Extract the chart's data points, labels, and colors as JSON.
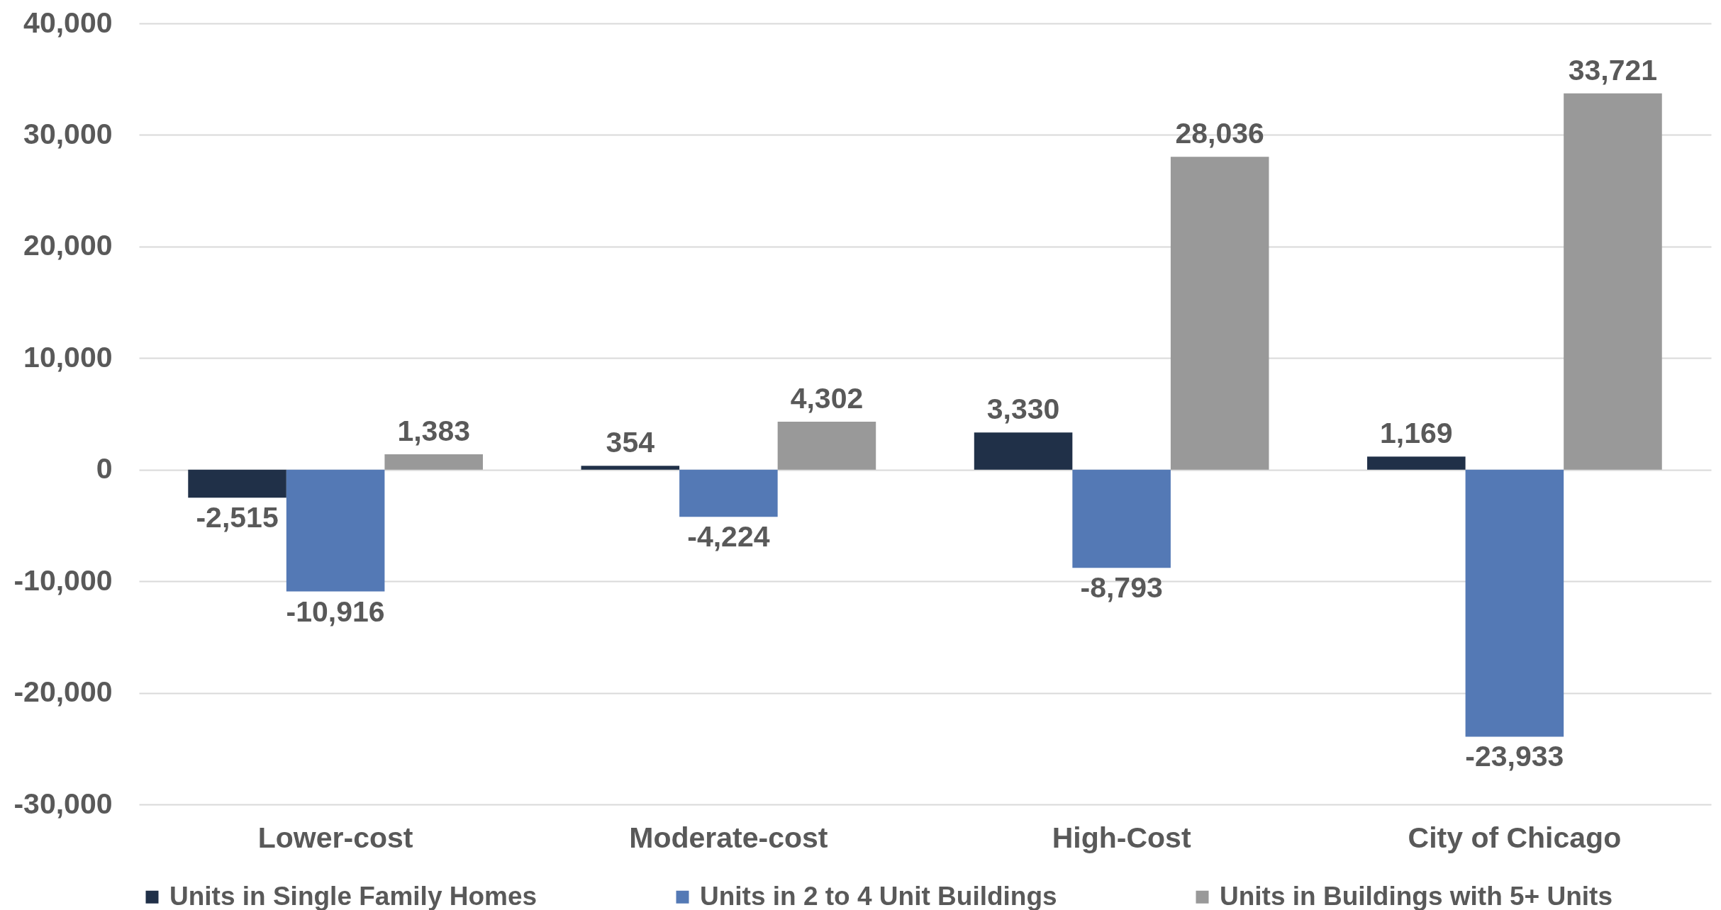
{
  "chart_data": {
    "type": "bar",
    "categories": [
      "Lower-cost",
      "Moderate-cost",
      "High-Cost",
      "City of Chicago"
    ],
    "series": [
      {
        "name": "Units in Single Family Homes",
        "color": "#203048",
        "values": [
          -2515,
          354,
          3330,
          1169
        ],
        "value_labels": [
          "-2,515",
          "354",
          "3,330",
          "1,169"
        ]
      },
      {
        "name": "Units in 2 to 4 Unit Buildings",
        "color": "#5479b5",
        "values": [
          -10916,
          -4224,
          -8793,
          -23933
        ],
        "value_labels": [
          "-10,916",
          "-4,224",
          "-8,793",
          "-23,933"
        ]
      },
      {
        "name": "Units in Buildings with 5+ Units",
        "color": "#999999",
        "values": [
          1383,
          4302,
          28036,
          33721
        ],
        "value_labels": [
          "1,383",
          "4,302",
          "28,036",
          "33,721"
        ]
      }
    ],
    "ylim": [
      -30000,
      40000
    ],
    "yticks": [
      {
        "value": -30000,
        "label": "-30,000"
      },
      {
        "value": -20000,
        "label": "-20,000"
      },
      {
        "value": -10000,
        "label": "-10,000"
      },
      0,
      {
        "value": 10000,
        "label": "10,000"
      },
      {
        "value": 20000,
        "label": "20,000"
      },
      {
        "value": 30000,
        "label": "30,000"
      },
      {
        "value": 40000,
        "label": "40,000"
      }
    ],
    "grid": "y",
    "legend": "bottom"
  }
}
